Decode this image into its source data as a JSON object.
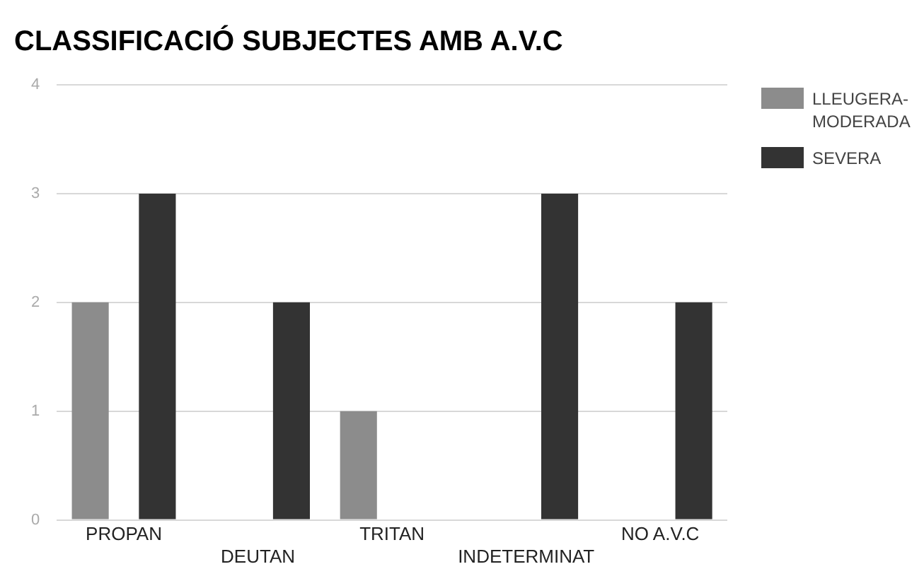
{
  "chart_data": {
    "type": "bar",
    "title": "CLASSIFICACIÓ SUBJECTES AMB A.V.C",
    "categories": [
      "PROPAN",
      "DEUTAN",
      "TRITAN",
      "INDETERMINAT",
      "NO A.V.C"
    ],
    "series": [
      {
        "name": "LLEUGERA-MODERADA",
        "color": "#8c8c8c",
        "values": [
          2,
          0,
          1,
          0,
          0
        ]
      },
      {
        "name": "SEVERA",
        "color": "#333333",
        "values": [
          3,
          2,
          0,
          3,
          2
        ]
      }
    ],
    "ylim": [
      0,
      4
    ],
    "yticks": [
      0,
      1,
      2,
      3,
      4
    ],
    "grid": "y",
    "legend": "top right"
  }
}
